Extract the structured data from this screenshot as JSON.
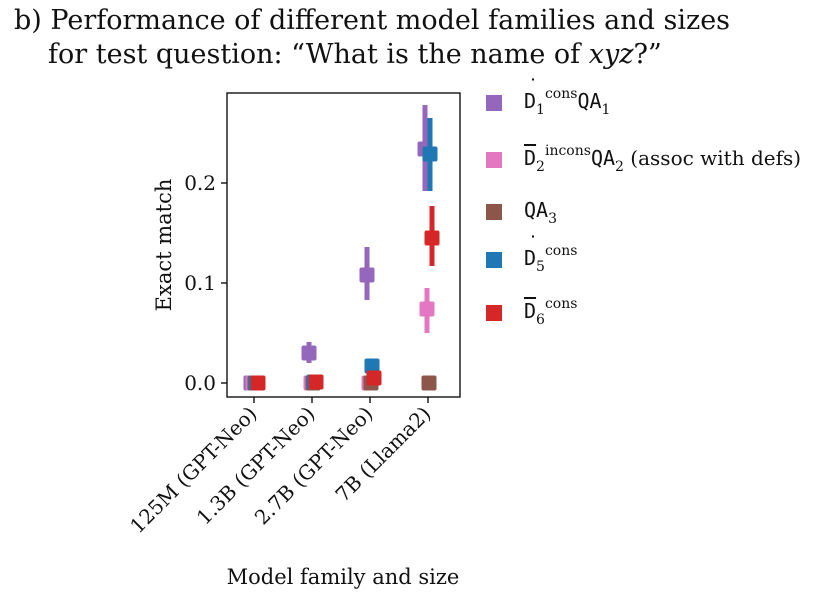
{
  "title": {
    "line1": "b) Performance of different model families and sizes",
    "line2_prefix": "for test question: “What is the name of ",
    "line2_var": "xyz",
    "line2_suffix": "?”"
  },
  "chart_data": {
    "type": "scatter",
    "xlabel": "Model family and size",
    "ylabel": "Exact match",
    "categories": [
      "125M (GPT-Neo)",
      "1.3B (GPT-Neo)",
      "2.7B (GPT-Neo)",
      "7B (Llama2)"
    ],
    "ylim": [
      -0.014,
      0.29
    ],
    "yticks": [
      0.0,
      0.1,
      0.2
    ],
    "ytick_labels": [
      "0.0",
      "0.1",
      "0.2"
    ],
    "grid": false,
    "legend_position": "outside-right",
    "series": [
      {
        "name": "Ḋ1consQA1",
        "color": "#9467bd",
        "values": [
          0.0,
          0.03,
          0.108,
          0.234
        ],
        "err_low": [
          0.0,
          0.02,
          0.083,
          0.192
        ],
        "err_high": [
          0.0,
          0.041,
          0.136,
          0.278
        ]
      },
      {
        "name": "D̄2incons QA2 (assoc with defs)",
        "color": "#e377c2",
        "values": [
          0.0,
          0.0,
          0.0,
          0.074
        ],
        "err_low": [
          0.0,
          0.0,
          0.0,
          0.05
        ],
        "err_high": [
          0.0,
          0.0,
          0.0,
          0.095
        ]
      },
      {
        "name": "QA3",
        "color": "#8c564b",
        "values": [
          0.0,
          0.0,
          0.0,
          0.0
        ],
        "err_low": [
          0.0,
          0.0,
          0.0,
          0.0
        ],
        "err_high": [
          0.0,
          0.0,
          0.0,
          0.0
        ]
      },
      {
        "name": "Ḋ5cons",
        "color": "#1f77b4",
        "values": [
          0.0,
          0.001,
          0.017,
          0.229
        ],
        "err_low": [
          0.0,
          0.0,
          0.01,
          0.192
        ],
        "err_high": [
          0.0,
          0.004,
          0.024,
          0.265
        ]
      },
      {
        "name": "D̄6cons",
        "color": "#d62728",
        "values": [
          0.0,
          0.001,
          0.005,
          0.145
        ],
        "err_low": [
          0.0,
          0.0,
          0.0,
          0.117
        ],
        "err_high": [
          0.0,
          0.004,
          0.01,
          0.177
        ]
      }
    ]
  },
  "legend": [
    {
      "base": "D",
      "mark": "dot",
      "sub": "1",
      "sup": "cons",
      "tail": "QA",
      "tail_sub": "1",
      "extra": "",
      "color": "#9467bd"
    },
    {
      "base": "D",
      "mark": "bar",
      "sub": "2",
      "sup": "incons",
      "tail": "QA",
      "tail_sub": "2",
      "extra": " (assoc with defs)",
      "color": "#e377c2"
    },
    {
      "base": "",
      "mark": "none",
      "sub": "",
      "sup": "",
      "tail": "QA",
      "tail_sub": "3",
      "extra": "",
      "color": "#8c564b"
    },
    {
      "base": "D",
      "mark": "dot",
      "sub": "5",
      "sup": "cons",
      "tail": "",
      "tail_sub": "",
      "extra": "",
      "color": "#1f77b4"
    },
    {
      "base": "D",
      "mark": "bar",
      "sub": "6",
      "sup": "cons",
      "tail": "",
      "tail_sub": "",
      "extra": "",
      "color": "#d62728"
    }
  ]
}
